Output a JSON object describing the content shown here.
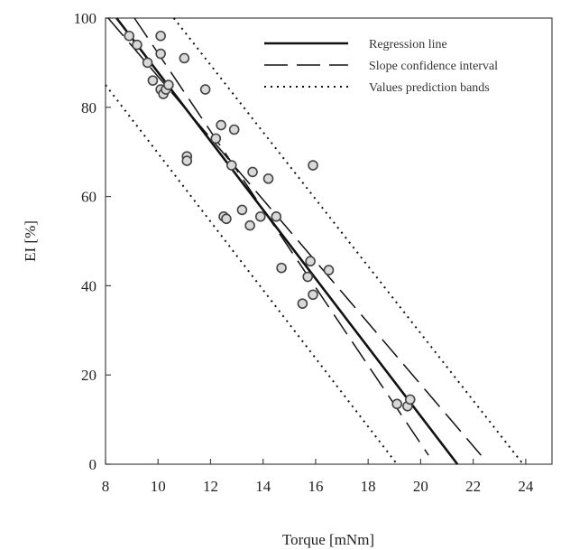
{
  "chart_data": {
    "type": "scatter",
    "title": "",
    "xlabel": "Torque [mNm]",
    "ylabel": "EI [%]",
    "xlim": [
      8,
      25
    ],
    "ylim": [
      0,
      100
    ],
    "xticks": [
      8,
      10,
      12,
      14,
      16,
      18,
      20,
      22,
      24
    ],
    "yticks": [
      0,
      20,
      40,
      60,
      80,
      100
    ],
    "grid": false,
    "legend_position": "top-right",
    "legend": [
      {
        "label": "Regression line",
        "style": "solid"
      },
      {
        "label": "Slope confidence interval",
        "style": "dashed"
      },
      {
        "label": "Values prediction bands",
        "style": "dotted"
      }
    ],
    "points": {
      "x": [
        8.9,
        9.2,
        9.6,
        9.8,
        10.1,
        10.1,
        10.1,
        10.2,
        10.3,
        10.4,
        11.0,
        11.1,
        11.1,
        11.8,
        12.2,
        12.4,
        12.5,
        12.6,
        12.8,
        12.9,
        13.2,
        13.5,
        13.6,
        13.9,
        14.2,
        14.5,
        14.7,
        15.5,
        15.7,
        15.8,
        15.9,
        15.9,
        16.5,
        19.1,
        19.5,
        19.6
      ],
      "y": [
        96,
        94,
        90,
        86,
        96,
        92,
        84,
        83,
        84,
        85,
        91,
        69,
        68,
        84,
        73,
        76,
        55.5,
        55,
        67,
        75,
        57,
        53.5,
        65.5,
        55.5,
        64,
        55.5,
        44,
        36,
        42,
        45.5,
        38,
        67,
        43.5,
        13.5,
        13,
        14.5
      ]
    },
    "regression_line": {
      "x": [
        8.42,
        21.4
      ],
      "y": [
        100,
        0
      ]
    },
    "confidence_interval": [
      {
        "x": [
          8.1,
          22.3
        ],
        "y": [
          100,
          2
        ]
      },
      {
        "x": [
          9.1,
          20.3
        ],
        "y": [
          100,
          2
        ]
      }
    ],
    "prediction_bands": [
      {
        "x": [
          10.6,
          23.9
        ],
        "y": [
          100,
          0
        ]
      },
      {
        "x": [
          8.0,
          19.1
        ],
        "y": [
          85,
          0
        ]
      }
    ]
  }
}
